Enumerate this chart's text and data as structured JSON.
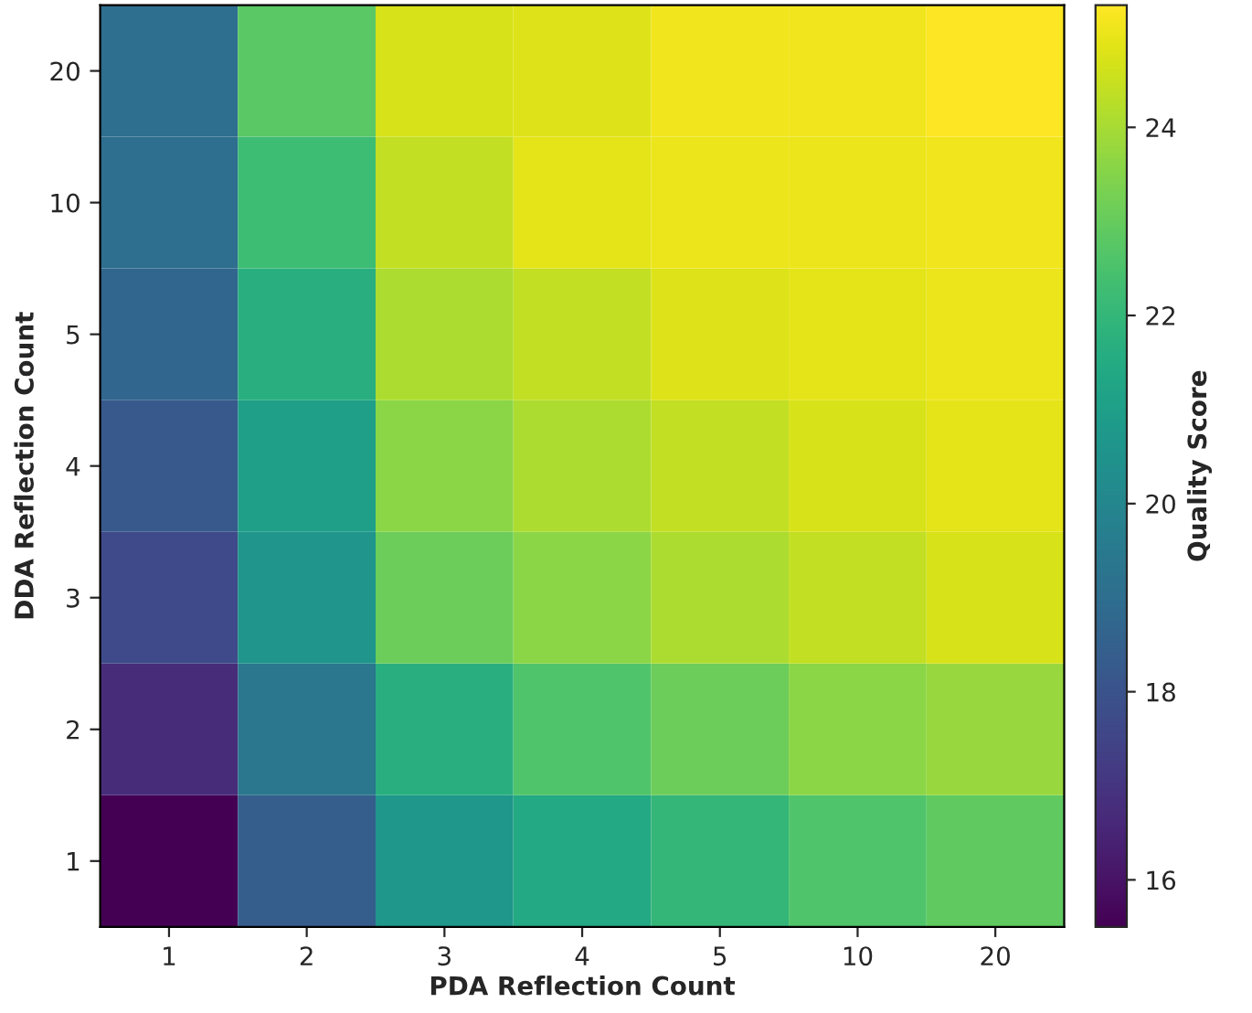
{
  "chart_data": {
    "type": "heatmap",
    "xlabel": "PDA Reflection Count",
    "ylabel": "DDA Reflection Count",
    "clabel": "Quality Score",
    "categories": [
      "1",
      "2",
      "3",
      "4",
      "5",
      "10",
      "20"
    ],
    "y_categories": [
      "20",
      "10",
      "5",
      "4",
      "3",
      "2",
      "1"
    ],
    "cells": [
      [
        19.0,
        22.8,
        24.7,
        24.8,
        25.1,
        25.1,
        25.3
      ],
      [
        19.0,
        22.2,
        24.4,
        24.9,
        25.0,
        25.0,
        25.1
      ],
      [
        18.7,
        21.7,
        24.1,
        24.4,
        24.8,
        24.9,
        25.0
      ],
      [
        18.2,
        21.0,
        23.6,
        24.1,
        24.4,
        24.7,
        24.9
      ],
      [
        17.7,
        20.6,
        23.1,
        23.6,
        24.1,
        24.4,
        24.7
      ],
      [
        16.7,
        19.4,
        21.7,
        22.6,
        23.1,
        23.6,
        23.8
      ],
      [
        15.5,
        18.4,
        20.7,
        21.4,
        22.0,
        22.6,
        22.9
      ]
    ],
    "clim": [
      15.5,
      25.3
    ],
    "cticks": [
      16,
      18,
      20,
      22,
      24
    ]
  }
}
